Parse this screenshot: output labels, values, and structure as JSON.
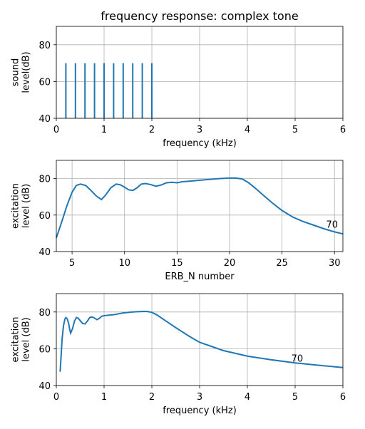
{
  "chart_data": [
    {
      "type": "bar",
      "title": "frequency response: complex tone",
      "xlabel": "frequency (kHz)",
      "ylabel": "sound\nlevel(dB)",
      "xlim": [
        0,
        6
      ],
      "ylim": [
        40,
        90
      ],
      "xticks": [
        0,
        1,
        2,
        3,
        4,
        5,
        6
      ],
      "yticks": [
        40,
        60,
        80
      ],
      "grid": true,
      "categories": [
        0.2,
        0.4,
        0.6,
        0.8,
        1.0,
        1.2,
        1.4,
        1.6,
        1.8,
        2.0
      ],
      "values": [
        70,
        70,
        70,
        70,
        70,
        70,
        70,
        70,
        70,
        70
      ]
    },
    {
      "type": "line",
      "xlabel": "ERB_N number",
      "ylabel": "excitation\nlevel (dB)",
      "xlim": [
        3.5,
        30.8
      ],
      "ylim": [
        40,
        90
      ],
      "xticks": [
        5,
        10,
        15,
        20,
        25,
        30
      ],
      "yticks": [
        40,
        60,
        80
      ],
      "grid": true,
      "annotations": [
        {
          "text": "70",
          "x": 29.2,
          "y": 55
        }
      ],
      "series": [
        {
          "x": [
            3.5,
            4.0,
            4.5,
            5.0,
            5.4,
            5.8,
            6.3,
            6.8,
            7.3,
            7.8,
            8.2,
            8.7,
            9.2,
            9.6,
            10.0,
            10.4,
            10.8,
            11.2,
            11.6,
            12.0,
            12.5,
            13.0,
            13.5,
            14.0,
            14.5,
            15.0,
            15.5,
            16.0,
            17.0,
            18.0,
            19.0,
            20.0,
            20.6,
            21.2,
            21.8,
            22.5,
            23.0,
            24.0,
            25.0,
            26.0,
            27.0,
            28.0,
            29.0,
            30.0,
            30.8
          ],
          "y": [
            47.5,
            56.0,
            65.0,
            72.5,
            76.2,
            77.0,
            76.2,
            73.5,
            70.5,
            68.5,
            71.0,
            75.0,
            77.0,
            76.6,
            75.3,
            73.8,
            73.5,
            75.0,
            77.0,
            77.3,
            76.7,
            75.8,
            76.5,
            77.7,
            78.0,
            77.7,
            78.3,
            78.5,
            79.0,
            79.5,
            80.0,
            80.3,
            80.3,
            79.8,
            77.8,
            74.5,
            72.0,
            67.0,
            62.5,
            59.0,
            56.5,
            54.5,
            52.5,
            50.8,
            49.7
          ]
        }
      ]
    },
    {
      "type": "line",
      "xlabel": "frequency (kHz)",
      "ylabel": "excitation\nlevel (dB)",
      "xlim": [
        0,
        6
      ],
      "ylim": [
        40,
        90
      ],
      "xticks": [
        0,
        1,
        2,
        3,
        4,
        5,
        6
      ],
      "yticks": [
        40,
        60,
        80
      ],
      "grid": true,
      "annotations": [
        {
          "text": "70",
          "x": 4.92,
          "y": 55
        }
      ],
      "series": [
        {
          "x": [
            0.08,
            0.1,
            0.12,
            0.15,
            0.18,
            0.2,
            0.23,
            0.26,
            0.28,
            0.3,
            0.34,
            0.38,
            0.42,
            0.46,
            0.5,
            0.55,
            0.6,
            0.65,
            0.7,
            0.75,
            0.8,
            0.85,
            0.9,
            0.95,
            1.0,
            1.1,
            1.2,
            1.4,
            1.6,
            1.8,
            1.9,
            2.0,
            2.1,
            2.3,
            2.5,
            2.8,
            3.0,
            3.5,
            4.0,
            4.5,
            5.0,
            5.5,
            6.0
          ],
          "y": [
            47.5,
            56.0,
            65.0,
            72.5,
            76.2,
            77.0,
            76.2,
            73.5,
            70.5,
            68.5,
            71.0,
            75.0,
            77.0,
            76.6,
            75.3,
            73.8,
            73.5,
            75.0,
            77.0,
            77.3,
            76.7,
            75.8,
            76.5,
            77.7,
            78.0,
            78.3,
            78.5,
            79.5,
            80.0,
            80.3,
            80.3,
            79.8,
            78.5,
            75.0,
            71.5,
            66.5,
            63.5,
            59.0,
            56.0,
            54.0,
            52.3,
            51.0,
            49.8
          ]
        }
      ]
    }
  ]
}
